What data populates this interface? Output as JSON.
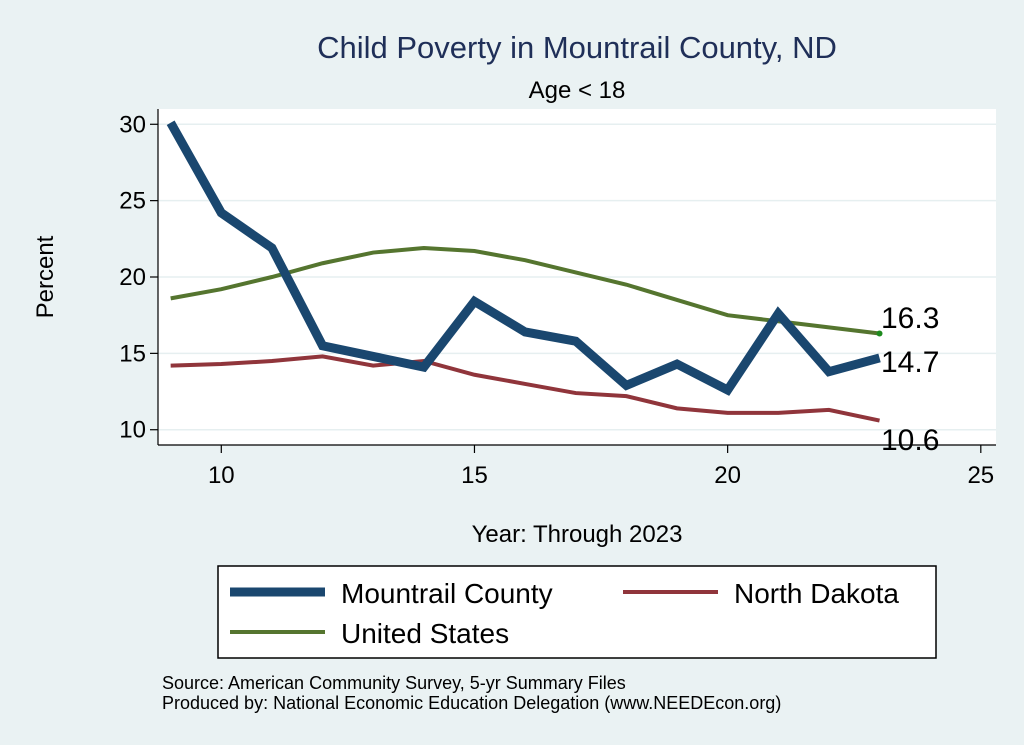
{
  "chart_data": {
    "type": "line",
    "title": "Child Poverty in Mountrail County, ND",
    "subtitle": "Age < 18",
    "xlabel": "Year: Through 2023",
    "ylabel": "Percent",
    "xlim": [
      8.75,
      25.3
    ],
    "ylim": [
      9,
      31
    ],
    "xticks": [
      10,
      15,
      20,
      25
    ],
    "yticks": [
      10,
      15,
      20,
      25,
      30
    ],
    "x": [
      9,
      10,
      11,
      12,
      13,
      14,
      15,
      16,
      17,
      18,
      19,
      20,
      21,
      22,
      23
    ],
    "series": [
      {
        "name": "Mountrail County",
        "color": "#1a476f",
        "values": [
          30.1,
          24.2,
          21.9,
          15.5,
          14.8,
          14.1,
          18.4,
          16.4,
          15.8,
          12.9,
          14.3,
          12.6,
          17.6,
          13.8,
          14.7
        ],
        "end_label": "14.7"
      },
      {
        "name": "North Dakota",
        "color": "#90353b",
        "values": [
          14.2,
          14.3,
          14.5,
          14.8,
          14.2,
          14.5,
          13.6,
          13.0,
          12.4,
          12.2,
          11.4,
          11.1,
          11.1,
          11.3,
          10.6
        ],
        "end_label": "10.6"
      },
      {
        "name": "United States",
        "color": "#55752f",
        "values": [
          18.6,
          19.2,
          20.0,
          20.9,
          21.6,
          21.9,
          21.7,
          21.1,
          20.3,
          19.5,
          18.5,
          17.5,
          17.1,
          16.7,
          16.3
        ],
        "end_label": "16.3"
      }
    ],
    "legend_position": "bottom",
    "source_lines": [
      "Source: American Community Survey, 5-yr Summary Files",
      "Produced by: National Economic Education Delegation (www.NEEDEcon.org)"
    ]
  }
}
